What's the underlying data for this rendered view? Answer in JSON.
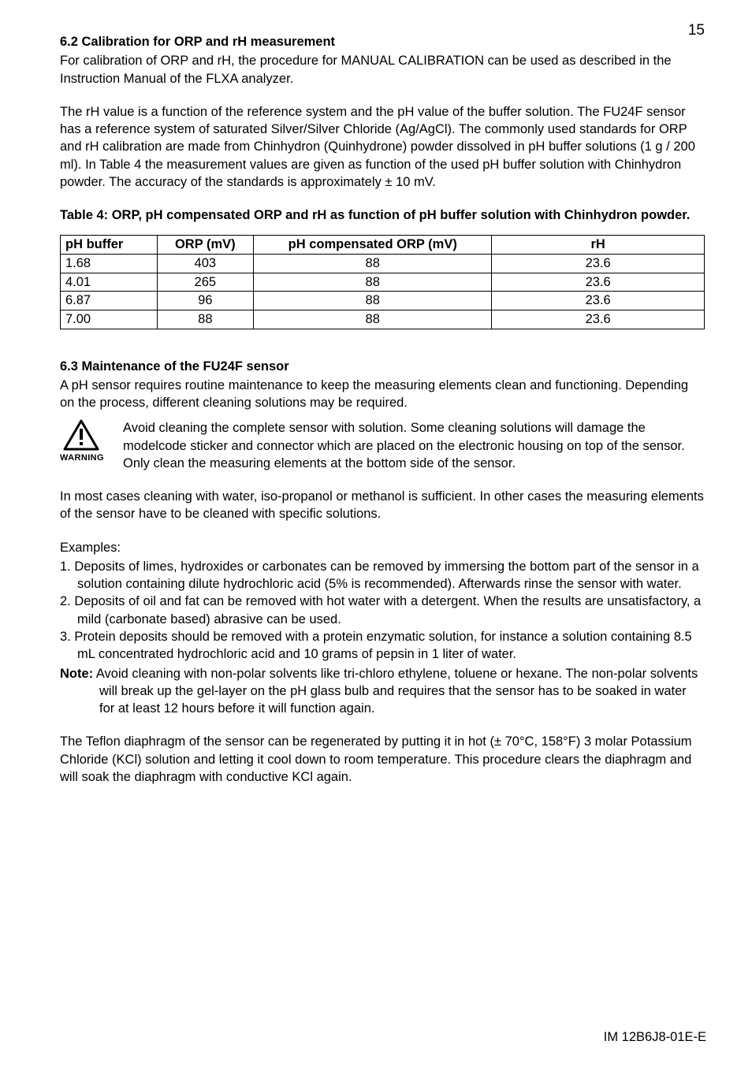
{
  "page_number": "15",
  "footer": "IM 12B6J8-01E-E",
  "section_6_2": {
    "title": "6.2 Calibration for ORP and rH measurement",
    "p1": "For calibration of ORP and rH, the procedure for MANUAL CALIBRATION can be used as described in the Instruction Manual of the FLXA analyzer.",
    "p2": "The rH value is a function of the reference system and the pH value of the buffer solution. The FU24F sensor has a reference system of saturated Silver/Silver Chloride (Ag/AgCl). The commonly used standards for ORP and rH calibration are made from Chinhydron (Quinhydrone) powder dissolved in pH buffer solutions (1 g / 200 ml). In Table 4 the measurement values are given as function of the used pH buffer solution with Chinhydron powder. The accuracy of the standards is approximately ± 10 mV."
  },
  "table4": {
    "title": "Table 4: ORP, pH compensated ORP and rH as function of pH buffer solution with Chinhydron powder.",
    "columns": [
      "pH buffer",
      "ORP (mV)",
      "pH compensated ORP (mV)",
      "rH"
    ],
    "col_widths_pct": [
      15,
      15,
      37,
      33
    ],
    "rows": [
      [
        "1.68",
        "403",
        "88",
        "23.6"
      ],
      [
        "4.01",
        "265",
        "88",
        "23.6"
      ],
      [
        "6.87",
        "96",
        "88",
        "23.6"
      ],
      [
        "7.00",
        "88",
        "88",
        "23.6"
      ]
    ],
    "border_color": "#000000",
    "text_color": "#000000",
    "font_size": 16.5
  },
  "section_6_3": {
    "title": "6.3 Maintenance of the FU24F sensor",
    "p1": "A pH sensor requires routine maintenance to keep the measuring elements clean and functioning. Depending on the process, different cleaning solutions may be required.",
    "warning_label": "WARNING",
    "warning_text": "Avoid cleaning the complete sensor with solution. Some cleaning solutions will damage the modelcode sticker and connector which are placed on the electronic housing on top of the sensor. Only clean the measuring elements at the bottom side of the sensor.",
    "p2": "In most cases cleaning with water, iso-propanol or methanol is sufficient. In other cases the measuring elements of the sensor have to be cleaned with specific solutions.",
    "examples_title": "Examples:",
    "examples": [
      "Deposits of limes, hydroxides or carbonates can be removed by immersing the bottom part of the sensor in a solution containing dilute hydrochloric acid (5% is recommended). Afterwards rinse the sensor with water.",
      "Deposits of oil and fat can be removed with hot water with a detergent. When the results are unsatisfactory, a mild (carbonate based) abrasive can be used.",
      "Protein deposits should be removed with a protein enzymatic solution, for instance a solution containing 8.5 mL concentrated hydrochloric acid and 10 grams of pepsin in 1 liter of water."
    ],
    "note_label": "Note:",
    "note_text": " Avoid cleaning with non-polar solvents like tri-chloro ethylene, toluene or hexane. The non-polar solvents will break up the gel-layer on the pH glass bulb and requires that the sensor has to be soaked in water for at least 12 hours before it will function again.",
    "p3": "The Teflon diaphragm of the sensor can be regenerated by putting it in hot (± 70°C, 158°F) 3 molar Potassium Chloride (KCl) solution and letting it cool down to room temperature. This procedure clears the diaphragm and will soak the diaphragm with conductive KCl again."
  }
}
